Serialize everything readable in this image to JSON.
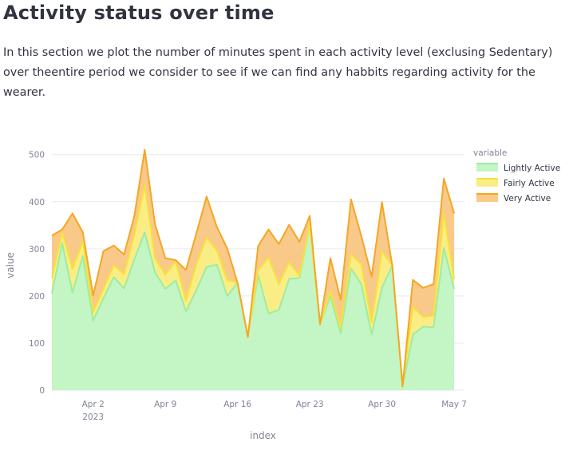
{
  "section": {
    "title": "Activity status over time",
    "description": "In this section we plot the number of minutes spent in each activity level (exclusing Sedentary) over theentire period we consider to see if we can find any habbits regarding activity for the wearer."
  },
  "chart_data": {
    "type": "area",
    "stacked": true,
    "xlabel": "index",
    "ylabel": "value",
    "ylim": [
      0,
      530
    ],
    "yticks": [
      0,
      100,
      200,
      300,
      400,
      500
    ],
    "x_range": [
      "2023-03-29",
      "2023-05-08"
    ],
    "x_ticks": [
      {
        "date": "2023-04-02",
        "label": "Apr 2",
        "sublabel": "2023"
      },
      {
        "date": "2023-04-09",
        "label": "Apr 9",
        "sublabel": ""
      },
      {
        "date": "2023-04-16",
        "label": "Apr 16",
        "sublabel": ""
      },
      {
        "date": "2023-04-23",
        "label": "Apr 23",
        "sublabel": ""
      },
      {
        "date": "2023-04-30",
        "label": "Apr 30",
        "sublabel": ""
      },
      {
        "date": "2023-05-07",
        "label": "May 7",
        "sublabel": ""
      }
    ],
    "grid": true,
    "legend_title": "variable",
    "legend_position": "top-right",
    "x": [
      "2023-03-29",
      "2023-03-30",
      "2023-03-31",
      "2023-04-01",
      "2023-04-02",
      "2023-04-03",
      "2023-04-04",
      "2023-04-05",
      "2023-04-06",
      "2023-04-07",
      "2023-04-08",
      "2023-04-09",
      "2023-04-10",
      "2023-04-11",
      "2023-04-12",
      "2023-04-13",
      "2023-04-14",
      "2023-04-15",
      "2023-04-16",
      "2023-04-17",
      "2023-04-18",
      "2023-04-19",
      "2023-04-20",
      "2023-04-21",
      "2023-04-22",
      "2023-04-23",
      "2023-04-24",
      "2023-04-25",
      "2023-04-26",
      "2023-04-27",
      "2023-04-28",
      "2023-04-29",
      "2023-04-30",
      "2023-05-01",
      "2023-05-02",
      "2023-05-03",
      "2023-05-04",
      "2023-05-05",
      "2023-05-06",
      "2023-05-07"
    ],
    "series": [
      {
        "name": "Lightly Active",
        "color": "#a0ec9f",
        "fill": "#c3f5c5",
        "values": [
          205,
          312,
          207,
          285,
          148,
          195,
          240,
          216,
          278,
          335,
          250,
          215,
          233,
          167,
          212,
          262,
          266,
          200,
          228,
          113,
          244,
          163,
          170,
          236,
          238,
          350,
          140,
          200,
          120,
          258,
          225,
          118,
          217,
          265,
          8,
          118,
          135,
          133,
          302,
          215
        ]
      },
      {
        "name": "Fairly Active",
        "color": "#f7e23a",
        "fill": "#fbed86",
        "values": [
          33,
          22,
          50,
          30,
          18,
          20,
          25,
          30,
          52,
          100,
          30,
          30,
          40,
          23,
          55,
          62,
          30,
          33,
          0,
          0,
          10,
          118,
          55,
          35,
          5,
          0,
          0,
          10,
          12,
          30,
          42,
          25,
          77,
          0,
          0,
          58,
          20,
          25,
          72,
          20
        ]
      },
      {
        "name": "Very Active",
        "color": "#f5a623",
        "fill": "#f9c98a",
        "values": [
          90,
          7,
          118,
          20,
          35,
          80,
          42,
          42,
          40,
          75,
          72,
          35,
          3,
          65,
          65,
          87,
          50,
          68,
          0,
          0,
          52,
          60,
          85,
          80,
          72,
          20,
          0,
          70,
          60,
          117,
          60,
          98,
          105,
          0,
          0,
          58,
          62,
          67,
          75,
          140
        ]
      }
    ]
  }
}
